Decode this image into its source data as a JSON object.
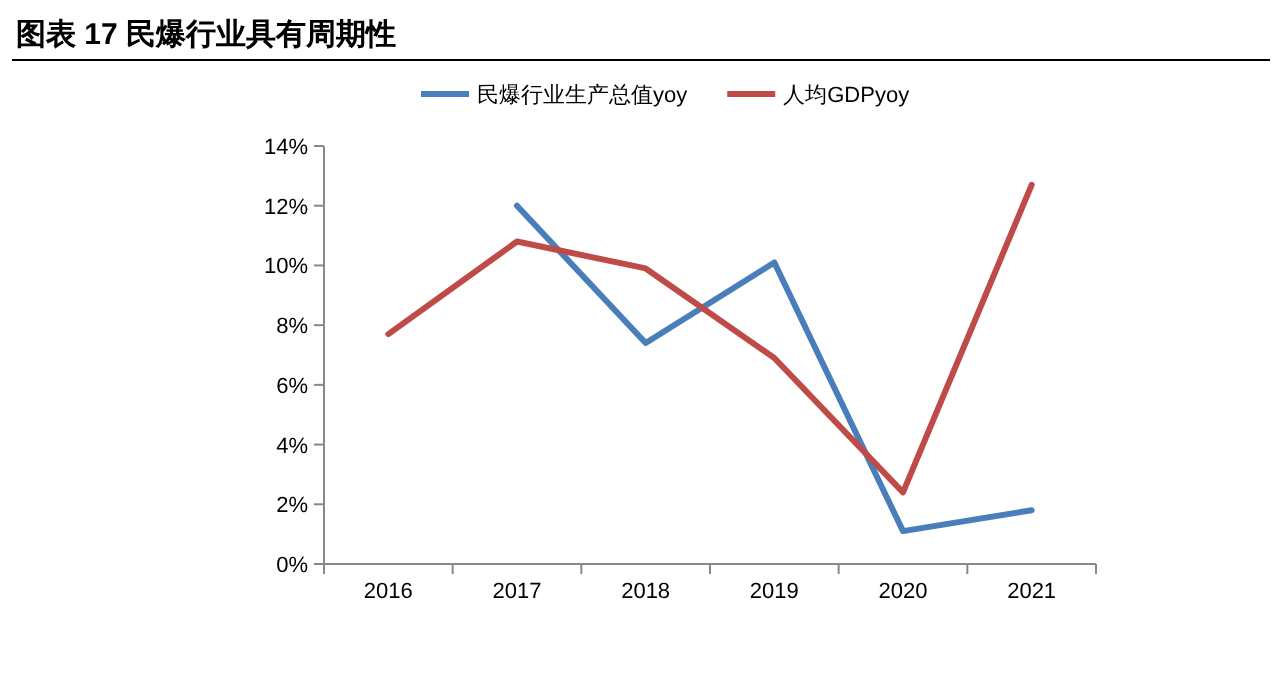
{
  "chart_data": {
    "type": "line",
    "title": "图表 17 民爆行业具有周期性",
    "categories": [
      "2016",
      "2017",
      "2018",
      "2019",
      "2020",
      "2021"
    ],
    "series": [
      {
        "name": "民爆行业生产总值yoy",
        "color": "#4a7ebb",
        "values": [
          null,
          12.0,
          7.4,
          10.1,
          1.1,
          1.8
        ]
      },
      {
        "name": "人均GDPyoy",
        "color": "#be4b48",
        "values": [
          7.7,
          10.8,
          9.9,
          6.9,
          2.4,
          12.7
        ]
      }
    ],
    "ylim": [
      0,
      14
    ],
    "yticks": [
      {
        "value": 0,
        "label": "0%"
      },
      {
        "value": 2,
        "label": "2%"
      },
      {
        "value": 4,
        "label": "4%"
      },
      {
        "value": 6,
        "label": "6%"
      },
      {
        "value": 8,
        "label": "8%"
      },
      {
        "value": 10,
        "label": "10%"
      },
      {
        "value": 12,
        "label": "12%"
      },
      {
        "value": 14,
        "label": "14%"
      }
    ],
    "grid": false,
    "legend": "top",
    "marker": "none",
    "line_style": "solid"
  }
}
